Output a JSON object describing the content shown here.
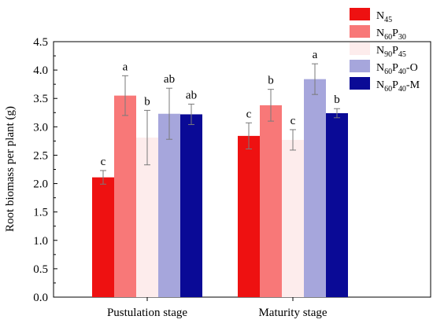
{
  "chart_data": {
    "type": "bar",
    "title": "",
    "xlabel": "",
    "ylabel": "Root biomass per plant (g)",
    "ylim": [
      0,
      4.5
    ],
    "yticks": [
      "0.0",
      "0.5",
      "1.0",
      "1.5",
      "2.0",
      "2.5",
      "3.0",
      "3.5",
      "4.0",
      "4.5"
    ],
    "categories": [
      "Pustulation stage",
      "Maturity stage"
    ],
    "legend_position": "top-right",
    "series": [
      {
        "name": "N45",
        "legend": {
          "base": "N",
          "sub1": "45",
          "mid": "",
          "sub2": "",
          "suffix": ""
        },
        "color": "#ee1111",
        "values": [
          2.11,
          2.84
        ],
        "errors": [
          0.12,
          0.23
        ],
        "letters": [
          "c",
          "c"
        ]
      },
      {
        "name": "N60P30",
        "legend": {
          "base": "N",
          "sub1": "60",
          "mid": "P",
          "sub2": "30",
          "suffix": ""
        },
        "color": "#f87878",
        "values": [
          3.55,
          3.38
        ],
        "errors": [
          0.35,
          0.28
        ],
        "letters": [
          "a",
          "b"
        ]
      },
      {
        "name": "N90P45",
        "legend": {
          "base": "N",
          "sub1": "90",
          "mid": "P",
          "sub2": "45",
          "suffix": ""
        },
        "color": "#fdecec",
        "values": [
          2.81,
          2.77
        ],
        "errors": [
          0.48,
          0.18
        ],
        "letters": [
          "b",
          "c"
        ]
      },
      {
        "name": "N60P40-O",
        "legend": {
          "base": "N",
          "sub1": "60",
          "mid": "P",
          "sub2": "40",
          "suffix": "-O"
        },
        "color": "#a6a6dc",
        "values": [
          3.23,
          3.84
        ],
        "errors": [
          0.45,
          0.27
        ],
        "letters": [
          "ab",
          "a"
        ]
      },
      {
        "name": "N60P40-M",
        "legend": {
          "base": "N",
          "sub1": "60",
          "mid": "P",
          "sub2": "40",
          "suffix": "-M"
        },
        "color": "#0a0a96",
        "values": [
          3.22,
          3.24
        ],
        "errors": [
          0.18,
          0.08
        ],
        "letters": [
          "ab",
          "b"
        ]
      }
    ]
  }
}
